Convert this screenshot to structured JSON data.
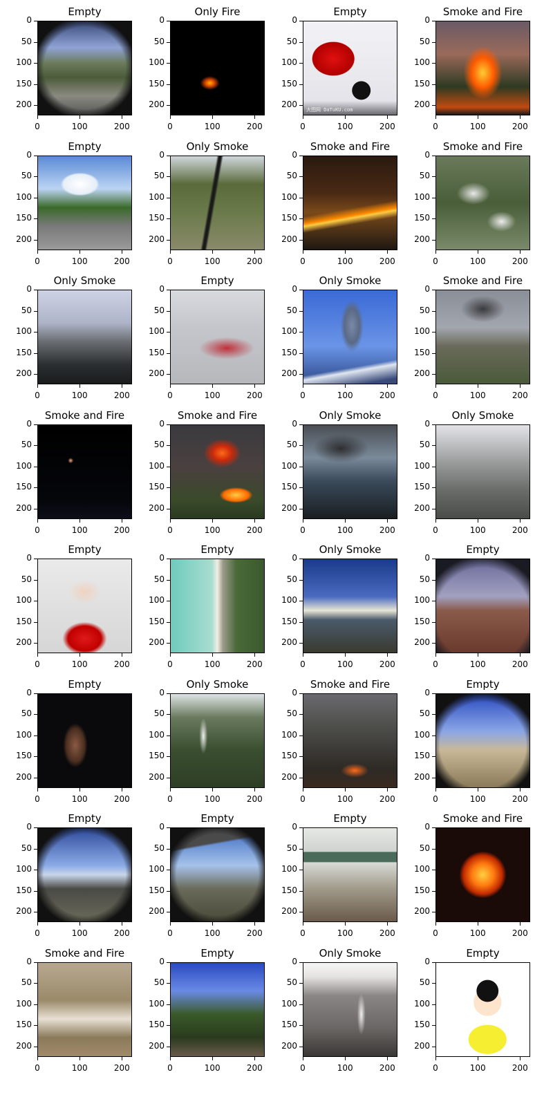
{
  "chart_data": {
    "type": "image_grid",
    "rows": 8,
    "cols": 4,
    "axis": {
      "x_ticks": [
        0,
        100,
        200
      ],
      "y_ticks": [
        0,
        50,
        100,
        150,
        200
      ],
      "xlim": [
        0,
        224
      ],
      "ylim": [
        224,
        0
      ]
    },
    "panels": [
      {
        "title": "Empty",
        "scene": "landscape-roof"
      },
      {
        "title": "Only Fire",
        "scene": "dark-fire"
      },
      {
        "title": "Empty",
        "scene": "red-car",
        "caption": "大图网 DaTuKU.com"
      },
      {
        "title": "Smoke and Fire",
        "scene": "forest-fire"
      },
      {
        "title": "Empty",
        "scene": "road-clouds"
      },
      {
        "title": "Only Smoke",
        "scene": "mountain-smoke-pole"
      },
      {
        "title": "Smoke and Fire",
        "scene": "night-wildfire"
      },
      {
        "title": "Smoke and Fire",
        "scene": "aerial-forest-smoke"
      },
      {
        "title": "Only Smoke",
        "scene": "town-haze"
      },
      {
        "title": "Empty",
        "scene": "classroom-kids"
      },
      {
        "title": "Only Smoke",
        "scene": "volcano-plume"
      },
      {
        "title": "Smoke and Fire",
        "scene": "city-smoke"
      },
      {
        "title": "Smoke and Fire",
        "scene": "night-lights"
      },
      {
        "title": "Smoke and Fire",
        "scene": "house-fire"
      },
      {
        "title": "Only Smoke",
        "scene": "crowd-smoke"
      },
      {
        "title": "Only Smoke",
        "scene": "valley-smoke-gray"
      },
      {
        "title": "Empty",
        "scene": "portrait-red"
      },
      {
        "title": "Empty",
        "scene": "aerial-beach"
      },
      {
        "title": "Only Smoke",
        "scene": "mountain-sunset-pole"
      },
      {
        "title": "Empty",
        "scene": "fisheye-red-land"
      },
      {
        "title": "Empty",
        "scene": "dark-portrait"
      },
      {
        "title": "Only Smoke",
        "scene": "green-hill-smoke"
      },
      {
        "title": "Smoke and Fire",
        "scene": "forest-ground-fire"
      },
      {
        "title": "Empty",
        "scene": "fisheye-blue-land"
      },
      {
        "title": "Empty",
        "scene": "fisheye-sky-hills"
      },
      {
        "title": "Empty",
        "scene": "fisheye-tower"
      },
      {
        "title": "Empty",
        "scene": "classroom-desks"
      },
      {
        "title": "Smoke and Fire",
        "scene": "night-house-fire"
      },
      {
        "title": "Smoke and Fire",
        "scene": "brown-smoke-field"
      },
      {
        "title": "Empty",
        "scene": "park-path"
      },
      {
        "title": "Only Smoke",
        "scene": "misty-valley-smoke"
      },
      {
        "title": "Empty",
        "scene": "cartoon-boy"
      }
    ]
  }
}
